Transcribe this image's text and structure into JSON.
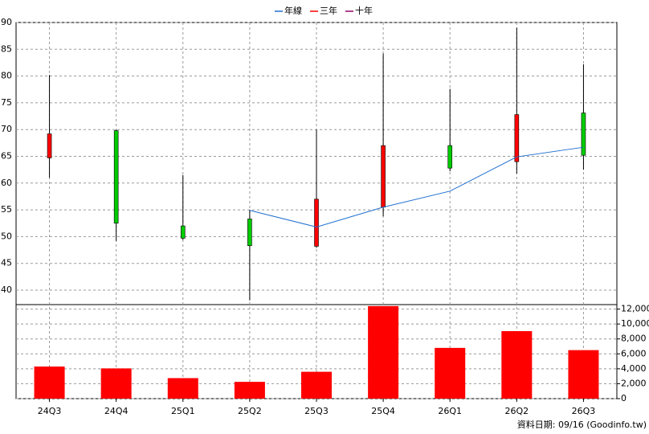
{
  "chart_data": {
    "type": "candlestick",
    "categories": [
      "24Q3",
      "24Q4",
      "25Q1",
      "25Q2",
      "25Q3",
      "25Q4",
      "26Q1",
      "26Q2",
      "26Q3"
    ],
    "ohlc": {
      "open": [
        64.7,
        69.8,
        52.0,
        53.3,
        48.2,
        55.5,
        67.0,
        64.0,
        73.1
      ],
      "high": [
        80.2,
        70.0,
        61.5,
        55.0,
        70.0,
        84.2,
        77.6,
        89.0,
        82.2
      ],
      "low": [
        61.0,
        49.2,
        49.4,
        38.1,
        47.9,
        53.8,
        62.2,
        61.8,
        62.5
      ],
      "close": [
        69.2,
        52.5,
        49.7,
        48.3,
        57.0,
        67.0,
        62.8,
        72.8,
        65.2
      ],
      "up_color": "#ff0000",
      "down_color": "#00cc00"
    },
    "series": [
      {
        "name": "年線",
        "color": "#1f6fd0",
        "values": [
          null,
          null,
          null,
          54.9,
          51.8,
          55.5,
          58.5,
          64.9,
          66.7
        ]
      },
      {
        "name": "三年",
        "color": "#ff0000",
        "values": [
          null,
          null,
          null,
          null,
          null,
          null,
          null,
          null,
          null
        ]
      },
      {
        "name": "十年",
        "color": "#990066",
        "values": [
          null,
          null,
          null,
          null,
          null,
          null,
          null,
          null,
          null
        ]
      }
    ],
    "volume": {
      "axis": "y2",
      "color": "#ff0000",
      "values": [
        4300,
        4050,
        2750,
        2250,
        3600,
        12400,
        6800,
        9050,
        6500
      ]
    },
    "ylim": [
      37.3,
      90
    ],
    "yticks": [
      40,
      45,
      50,
      55,
      60,
      65,
      70,
      75,
      80,
      85,
      90
    ],
    "y2lim": [
      0,
      12600
    ],
    "y2ticks": [
      0,
      {
        "value": 2000,
        "label": "2,000"
      },
      {
        "value": 4000,
        "label": "4,000"
      },
      {
        "value": 6000,
        "label": "6,000"
      },
      {
        "value": 8000,
        "label": "8,000"
      },
      {
        "value": 10000,
        "label": "10,000"
      },
      {
        "value": 12000,
        "label": "12,000"
      }
    ],
    "grid": true,
    "legend": "top",
    "footnote": "資料日期: 09/16  (Goodinfo.tw)"
  }
}
